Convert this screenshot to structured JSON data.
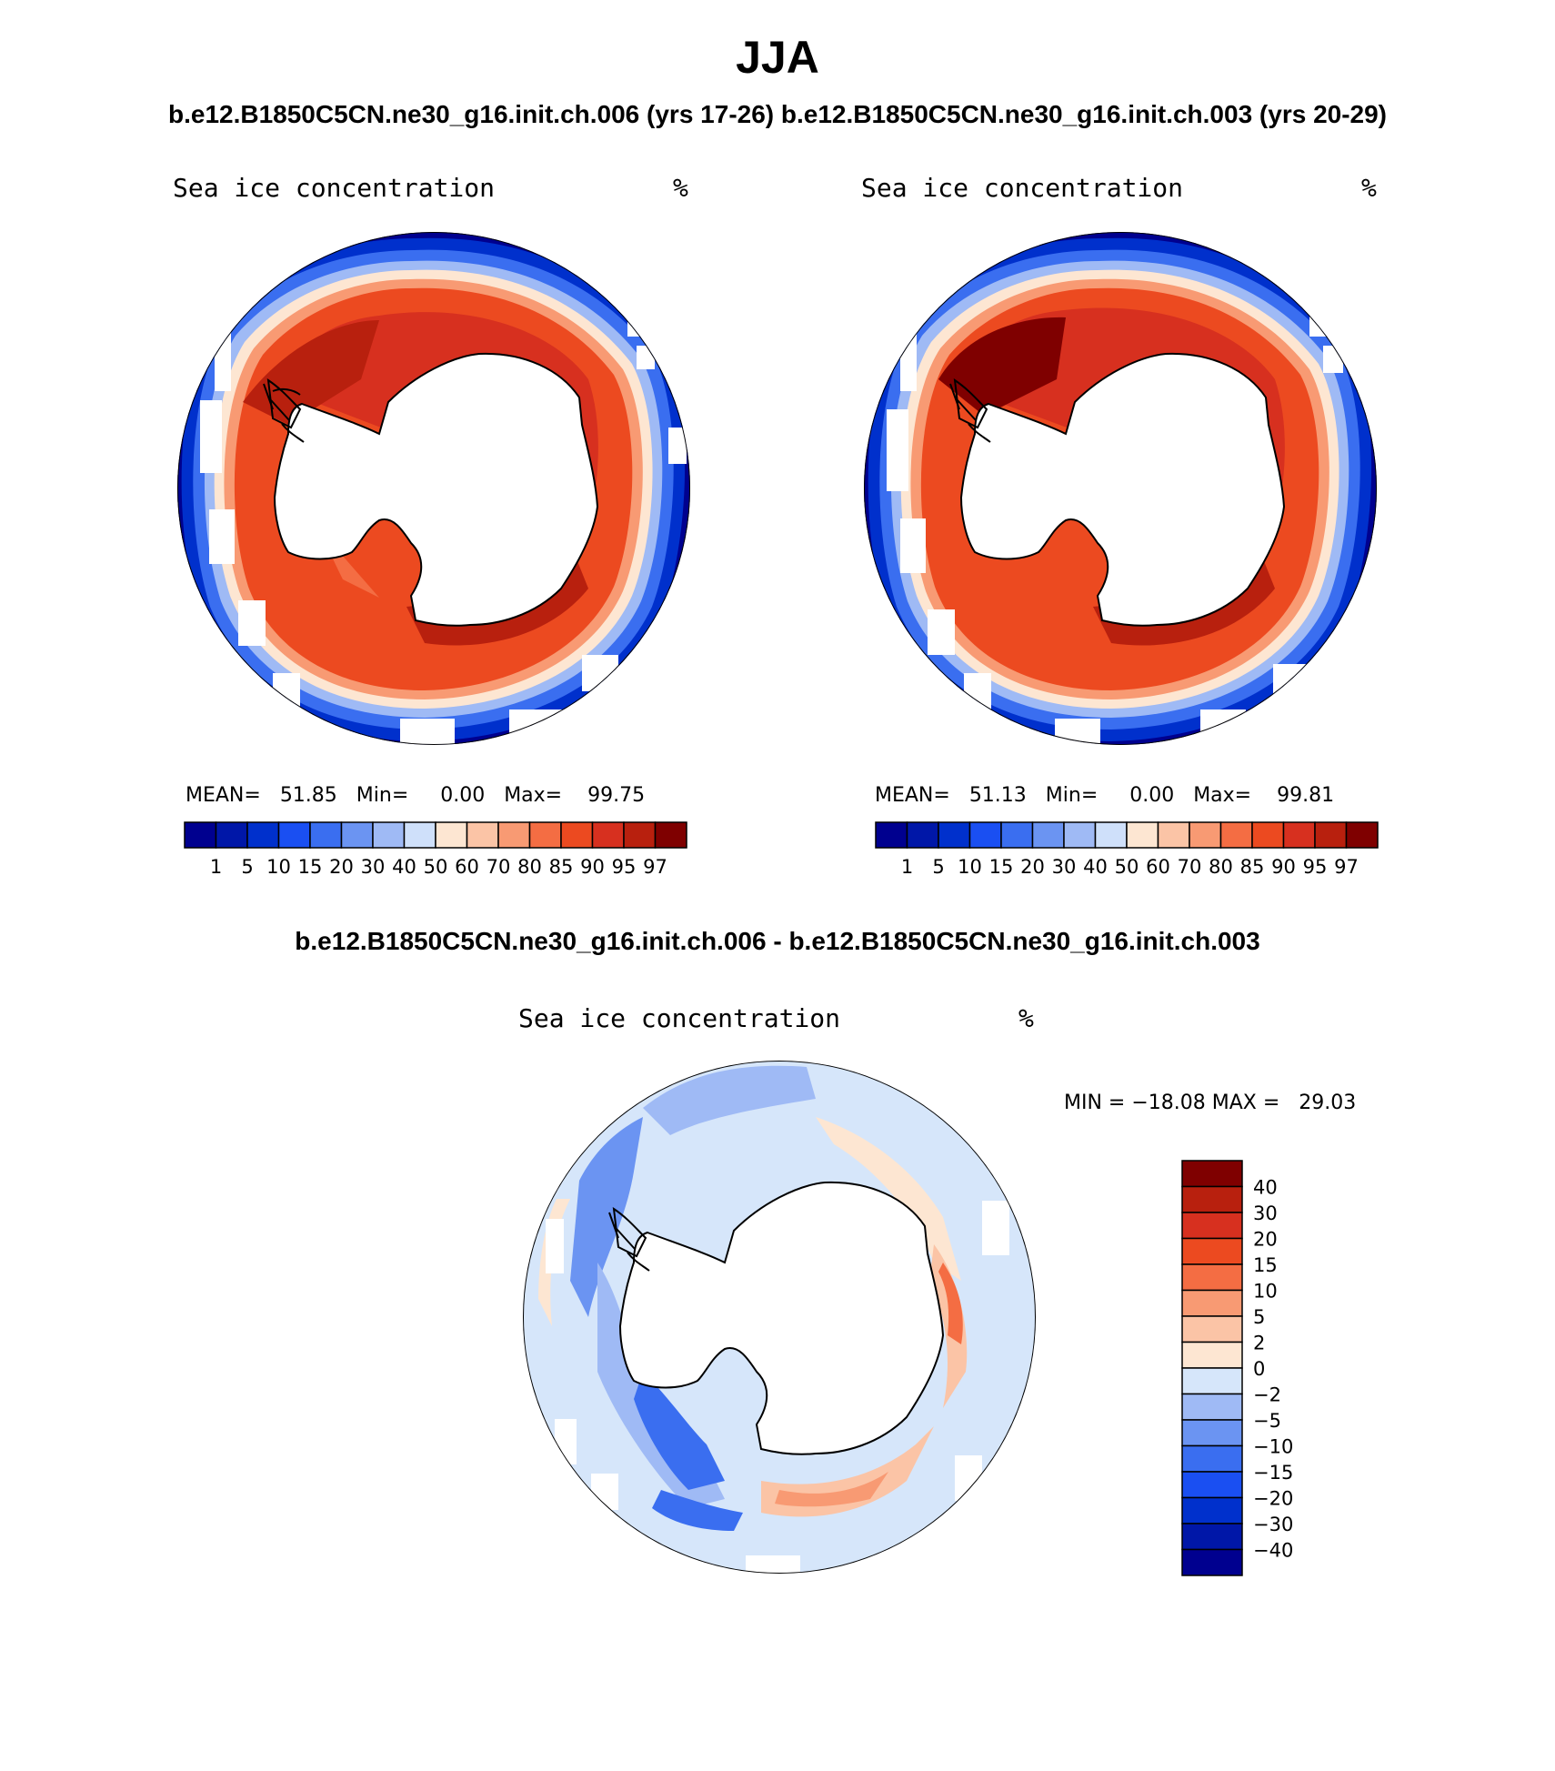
{
  "page_title": "JJA",
  "subtitle": "b.e12.B1850C5CN.ne30_g16.init.ch.006 (yrs 17-26)  b.e12.B1850C5CN.ne30_g16.init.ch.003 (yrs 20-29)",
  "diff_title": "b.e12.B1850C5CN.ne30_g16.init.ch.006 - b.e12.B1850C5CN.ne30_g16.init.ch.003",
  "palettes": {
    "conc": [
      "#00008f",
      "#0017a8",
      "#0030cc",
      "#1a4ff2",
      "#3a6ef0",
      "#6b94f2",
      "#9fbaf5",
      "#cfe0fa",
      "#fde6d2",
      "#fbc4a6",
      "#f89a73",
      "#f46d43",
      "#ec4a20",
      "#d7301f",
      "#b8200e",
      "#7f0000"
    ],
    "diff": [
      "#00008f",
      "#0017a8",
      "#0030cc",
      "#1a4ff2",
      "#3a6ef0",
      "#6b94f2",
      "#9fbaf5",
      "#d6e6fa",
      "#fde6d2",
      "#fbc4a6",
      "#f89a73",
      "#f46d43",
      "#ec4a20",
      "#d7301f",
      "#b8200e",
      "#7f0000"
    ]
  },
  "chart_data": [
    {
      "type": "polar-contour-map",
      "panel": "left",
      "title": "Sea ice concentration",
      "units": "%",
      "stats": {
        "mean_label": "MEAN=",
        "mean": "51.85",
        "min_label": "Min=",
        "min": "0.00",
        "max_label": "Max=",
        "max": "99.75"
      },
      "colorbar_levels": [
        "1",
        "5",
        "10",
        "15",
        "20",
        "30",
        "40",
        "50",
        "60",
        "70",
        "80",
        "85",
        "90",
        "95",
        "97"
      ]
    },
    {
      "type": "polar-contour-map",
      "panel": "right",
      "title": "Sea ice concentration",
      "units": "%",
      "stats": {
        "mean_label": "MEAN=",
        "mean": "51.13",
        "min_label": "Min=",
        "min": "0.00",
        "max_label": "Max=",
        "max": "99.81"
      },
      "colorbar_levels": [
        "1",
        "5",
        "10",
        "15",
        "20",
        "30",
        "40",
        "50",
        "60",
        "70",
        "80",
        "85",
        "90",
        "95",
        "97"
      ]
    },
    {
      "type": "polar-contour-map",
      "panel": "difference",
      "title": "Sea ice concentration",
      "units": "%",
      "stats_text": "MIN = −18.08 MAX =   29.03",
      "colorbar_levels": [
        "40",
        "30",
        "20",
        "15",
        "10",
        "5",
        "2",
        "0",
        "−2",
        "−5",
        "−10",
        "−15",
        "−20",
        "−30",
        "−40"
      ]
    }
  ]
}
